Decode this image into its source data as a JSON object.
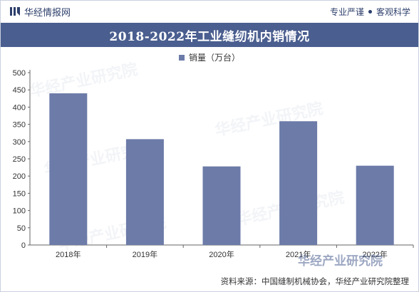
{
  "header": {
    "brand": "华经情报网",
    "tag1": "专业严谨",
    "tag2": "客观科学"
  },
  "chart_data": {
    "type": "bar",
    "title": "2018-2022年工业缝纫机内销情况",
    "categories": [
      "2018年",
      "2019年",
      "2020年",
      "2021年",
      "2022年"
    ],
    "series": [
      {
        "name": "销量（万台）",
        "values": [
          440,
          307,
          228,
          359,
          230
        ]
      }
    ],
    "ylim": [
      0,
      500
    ],
    "yticks": [
      0,
      50,
      100,
      150,
      200,
      250,
      300,
      350,
      400,
      450,
      500
    ],
    "xlabel": "",
    "ylabel": "",
    "legend_position": "top-center",
    "grid": false,
    "bar_color": "#6c7ba8"
  },
  "footer": {
    "source": "资料来源：中国缝制机械协会，华经产业研究院整理"
  },
  "watermark": {
    "corner": "华经产业研究院"
  }
}
